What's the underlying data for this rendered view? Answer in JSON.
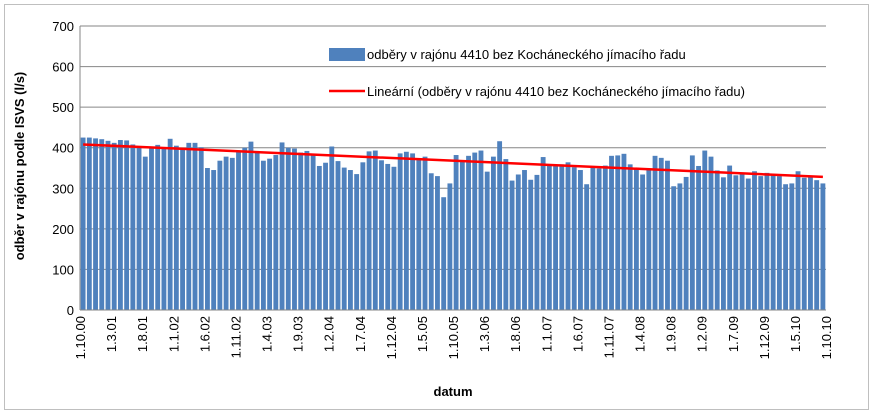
{
  "chart_data": {
    "type": "bar",
    "title": "",
    "xlabel": "datum",
    "ylabel": "odběr v rajónu podle ISVS (l/s)",
    "ylim": [
      0,
      700
    ],
    "yticks": [
      0,
      100,
      200,
      300,
      400,
      500,
      600,
      700
    ],
    "grid": true,
    "legend_position": "top-right",
    "xtick_labels": [
      "1.10.00",
      "1.3.01",
      "1.8.01",
      "1.1.02",
      "1.6.02",
      "1.11.02",
      "1.4.03",
      "1.9.03",
      "1.2.04",
      "1.7.04",
      "1.12.04",
      "1.5.05",
      "1.10.05",
      "1.3.06",
      "1.8.06",
      "1.1.07",
      "1.6.07",
      "1.11.07",
      "1.4.08",
      "1.9.08",
      "1.2.09",
      "1.7.09",
      "1.12.09",
      "1.5.10",
      "1.10.10"
    ],
    "series": [
      {
        "name": "odběry v rajónu  4410 bez Kocháneckého jímacího  řadu",
        "color": "#4f81bd",
        "values": [
          425,
          425,
          423,
          421,
          417,
          412,
          419,
          418,
          408,
          403,
          378,
          403,
          407,
          400,
          422,
          405,
          399,
          412,
          412,
          401,
          350,
          345,
          368,
          378,
          375,
          390,
          400,
          415,
          392,
          368,
          373,
          382,
          413,
          400,
          398,
          388,
          392,
          382,
          355,
          363,
          403,
          367,
          351,
          345,
          335,
          364,
          391,
          393,
          369,
          360,
          353,
          386,
          390,
          386,
          372,
          378,
          337,
          330,
          278,
          312,
          382,
          367,
          380,
          388,
          393,
          341,
          378,
          416,
          372,
          319,
          334,
          345,
          321,
          333,
          377,
          356,
          355,
          359,
          364,
          352,
          345,
          310,
          355,
          349,
          356,
          380,
          381,
          385,
          359,
          351,
          334,
          348,
          380,
          375,
          368,
          305,
          312,
          328,
          381,
          355,
          393,
          378,
          344,
          327,
          356,
          332,
          338,
          324,
          342,
          330,
          338,
          335,
          330,
          310,
          312,
          342,
          326,
          328,
          320,
          312
        ]
      }
    ],
    "trendline": {
      "name": "Lineární (odběry v rajónu 4410 bez Kocháneckého jímacího  řadu)",
      "color": "#ff0000",
      "start": 408,
      "end": 328
    }
  }
}
